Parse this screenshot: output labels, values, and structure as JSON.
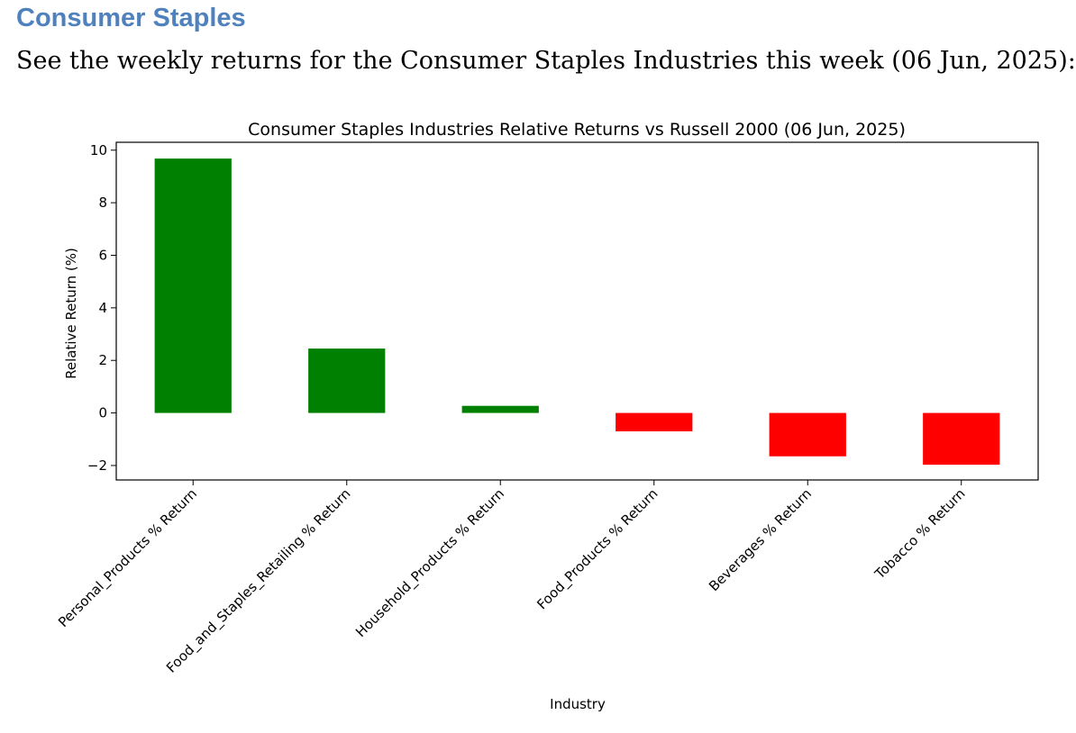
{
  "heading": "Consumer Staples",
  "intro": "See the weekly returns for the Consumer Staples Industries this week (06 Jun, 2025):",
  "colors": {
    "heading": "#4f81bd",
    "positive": "#008000",
    "negative": "#ff0000"
  },
  "chart_data": {
    "type": "bar",
    "title": "Consumer Staples Industries Relative Returns vs Russell 2000 (06 Jun, 2025)",
    "xlabel": "Industry",
    "ylabel": "Relative Return (%)",
    "categories": [
      "Personal_Products % Return",
      "Food_and_Staples_Retailing % Return",
      "Household_Products % Return",
      "Food_Products % Return",
      "Beverages % Return",
      "Tobacco % Return"
    ],
    "values": [
      9.68,
      2.45,
      0.27,
      -0.7,
      -1.65,
      -1.97
    ],
    "ylim": [
      -2.55,
      10.3
    ],
    "yticks": [
      -2,
      0,
      2,
      4,
      6,
      8,
      10
    ],
    "ytick_labels": [
      "−2",
      "0",
      "2",
      "4",
      "6",
      "8",
      "10"
    ],
    "grid": false,
    "legend": "none"
  }
}
